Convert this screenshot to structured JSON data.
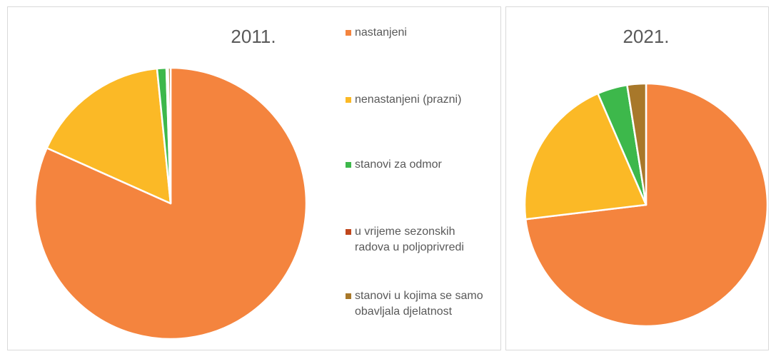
{
  "chart_data": [
    {
      "type": "pie",
      "title": "2011.",
      "categories": [
        "nastanjeni",
        "nenastanjeni (prazni)",
        "stanovi za odmor",
        "u vrijeme sezonskih radova u poljoprivredi",
        "stanovi u kojima se samo obavljala djelatnost"
      ],
      "colors": [
        "#f4843e",
        "#fbb926",
        "#3db84b",
        "#c0471c",
        "#a8782a"
      ],
      "values": [
        81.7,
        16.7,
        1.1,
        0.2,
        0.3
      ]
    },
    {
      "type": "pie",
      "title": "2021.",
      "values": [
        73.1,
        20.4,
        4.0,
        0,
        2.5
      ]
    }
  ]
}
